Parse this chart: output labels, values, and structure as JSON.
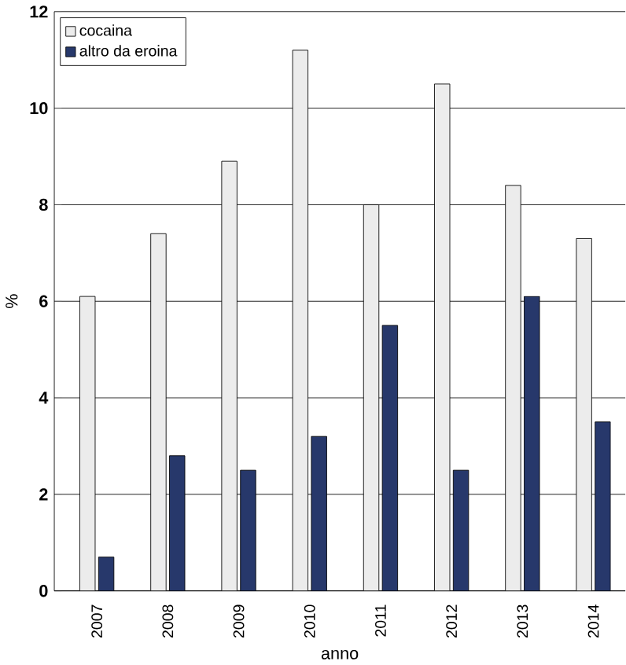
{
  "chart_data": {
    "type": "bar",
    "xlabel": "anno",
    "ylabel": "%",
    "categories": [
      "2007",
      "2008",
      "2009",
      "2010",
      "2011",
      "2012",
      "2013",
      "2014"
    ],
    "series": [
      {
        "name": "cocaina",
        "color": "#ececec",
        "values": [
          6.1,
          7.4,
          8.9,
          11.2,
          8.0,
          10.5,
          8.4,
          7.3
        ]
      },
      {
        "name": "altro da eroina",
        "color": "#27386b",
        "values": [
          0.7,
          2.8,
          2.5,
          3.2,
          5.5,
          2.5,
          6.1,
          3.5
        ]
      }
    ],
    "ylim": [
      0,
      12
    ],
    "yticks": [
      0,
      2,
      4,
      6,
      8,
      10,
      12
    ],
    "grid": "y",
    "legend": "top left"
  }
}
